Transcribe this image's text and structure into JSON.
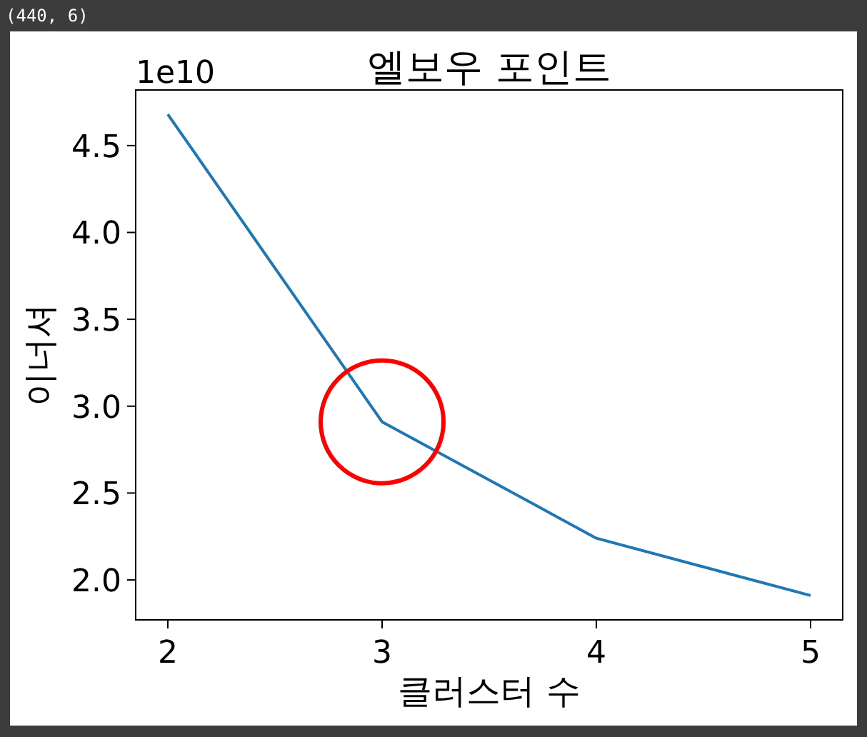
{
  "chart_data": {
    "type": "line",
    "title": "엘보우 포인트",
    "xlabel": "클러스터 수",
    "ylabel": "이너셔",
    "x": [
      2,
      3,
      4,
      5
    ],
    "series": [
      {
        "type": "line",
        "color": "#1f77b4",
        "values": [
          4.68,
          2.91,
          2.24,
          1.91
        ]
      },
      {
        "type": "scatter",
        "color": "#ff0000",
        "marker": "circle",
        "x": [
          3
        ],
        "values": [
          2.91
        ]
      }
    ],
    "xlim": [
      1.85,
      5.15
    ],
    "xticks": [
      2,
      3,
      4,
      5
    ],
    "ylim": [
      1.77,
      4.82
    ],
    "yticks": [
      {
        "value": 2,
        "label": "2.0"
      },
      {
        "value": 2.5,
        "label": "2.5"
      },
      {
        "value": 3,
        "label": "3.0"
      },
      {
        "value": 3.5,
        "label": "3.5"
      },
      {
        "value": 4,
        "label": "4.0"
      },
      {
        "value": 4.5,
        "label": "4.5"
      }
    ],
    "annotations": [
      "1e10",
      "(440, 6)"
    ],
    "grid": false
  }
}
